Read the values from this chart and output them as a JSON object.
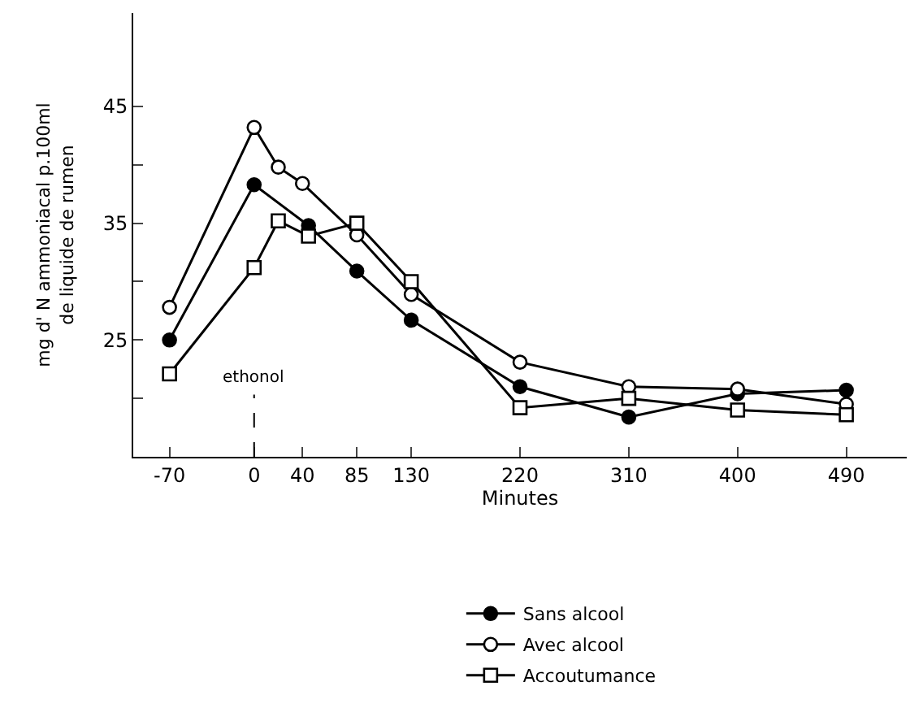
{
  "chart_data": {
    "type": "line",
    "xlabel": "Minutes",
    "ylabel": "mg d' N ammoniacal p.100ml\nde liquide de rumen",
    "xlim": [
      -100,
      540
    ],
    "xticks": [
      -70,
      0,
      40,
      85,
      130,
      220,
      310,
      400,
      490
    ],
    "ylim": [
      15,
      53
    ],
    "yticks": [
      {
        "value": 20,
        "label": null
      },
      25,
      {
        "value": 30,
        "label": null
      },
      35,
      {
        "value": 40,
        "label": null
      },
      45
    ],
    "legend": "bottom",
    "line_style": "solid",
    "ref_lines": [
      {
        "axis": "x",
        "value": 0,
        "label": "ethonol"
      }
    ],
    "series": [
      {
        "name": "Sans alcool",
        "color": "#000000",
        "marker": "circle",
        "x": [
          -70,
          0,
          45,
          85,
          130,
          220,
          310,
          400,
          490
        ],
        "values": [
          25.0,
          38.3,
          34.8,
          30.9,
          26.7,
          21.0,
          18.4,
          20.4,
          20.7
        ]
      },
      {
        "name": "Avec alcool",
        "color": "#000000",
        "marker": "circle",
        "x": [
          -70,
          0,
          20,
          40,
          85,
          130,
          220,
          310,
          400,
          490
        ],
        "values": [
          27.8,
          43.2,
          39.8,
          38.4,
          34.0,
          28.9,
          23.1,
          21.0,
          20.8,
          19.5
        ]
      },
      {
        "name": "Accoutumance",
        "color": "#000000",
        "marker": "square",
        "x": [
          -70,
          0,
          20,
          45,
          85,
          130,
          220,
          310,
          400,
          490
        ],
        "values": [
          22.1,
          31.2,
          35.2,
          33.9,
          35.0,
          30.0,
          19.2,
          20.0,
          19.0,
          18.6
        ]
      }
    ]
  }
}
